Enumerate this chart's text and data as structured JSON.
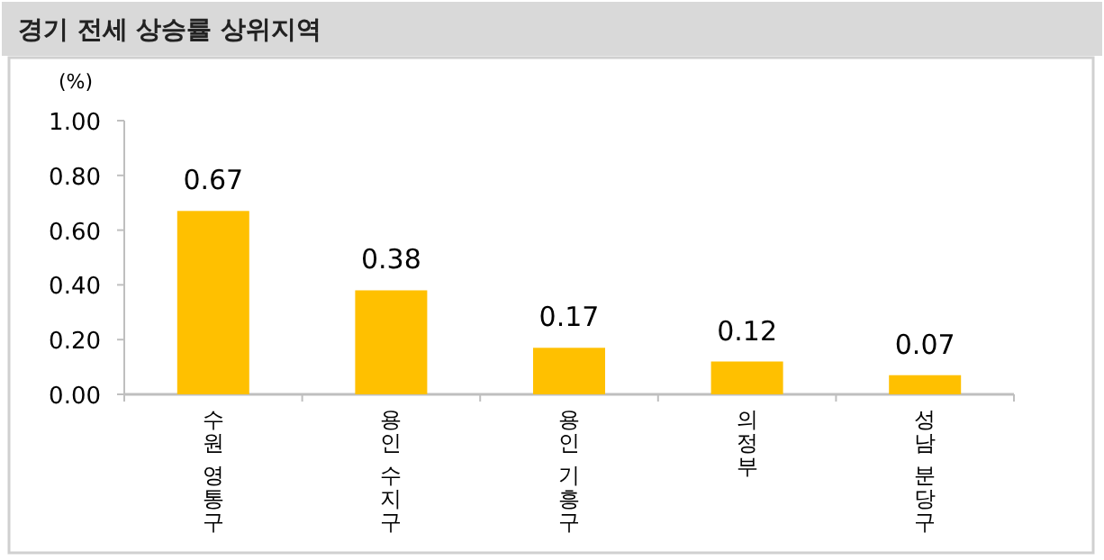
{
  "chart_data": {
    "type": "bar",
    "title": "경기 전세 상승률 상위지역",
    "ylabel": "(%)",
    "categories": [
      "수원 영통구",
      "용인 수지구",
      "용인 기흥구",
      "의정부",
      "성남 분당구"
    ],
    "values": [
      0.67,
      0.38,
      0.17,
      0.12,
      0.07
    ],
    "color": "#ffc000",
    "ylim": [
      0,
      1
    ],
    "yticks": [
      {
        "value": 0,
        "label": "0.00"
      },
      {
        "value": 0.2,
        "label": "0.20"
      },
      {
        "value": 0.4,
        "label": "0.40"
      },
      {
        "value": 0.6,
        "label": "0.60"
      },
      {
        "value": 0.8,
        "label": "0.80"
      },
      {
        "value": 1,
        "label": "1.00"
      }
    ],
    "data_labels": true,
    "grid": false
  }
}
